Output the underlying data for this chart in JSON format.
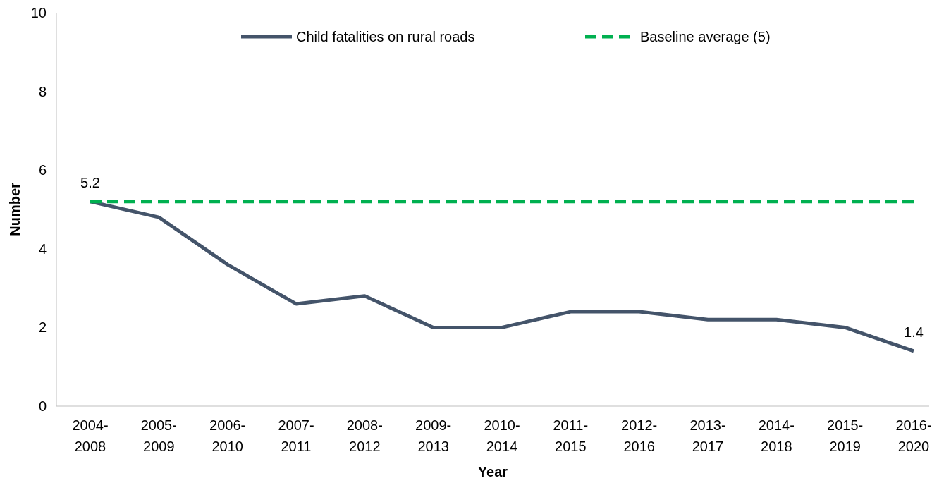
{
  "chart_data": {
    "type": "line",
    "xlabel": "Year",
    "ylabel": "Number",
    "categories": [
      "2004-2008",
      "2005-2009",
      "2006-2010",
      "2007-2011",
      "2008-2012",
      "2009-2013",
      "2010-2014",
      "2011-2015",
      "2012-2016",
      "2013-2017",
      "2014-2018",
      "2015-2019",
      "2016-2020"
    ],
    "series": [
      {
        "name": "Child fatalities on rural roads",
        "color": "#44546a",
        "line_style": "solid",
        "values": [
          5.2,
          4.8,
          3.6,
          2.6,
          2.8,
          2.0,
          2.0,
          2.4,
          2.4,
          2.2,
          2.2,
          2.0,
          1.4
        ],
        "value_labels": [
          "5.2",
          null,
          null,
          null,
          null,
          null,
          null,
          null,
          null,
          null,
          null,
          null,
          "1.4"
        ]
      },
      {
        "name": "Baseline average (5)",
        "color": "#00b050",
        "line_style": "dashed",
        "values": [
          5.2,
          5.2,
          5.2,
          5.2,
          5.2,
          5.2,
          5.2,
          5.2,
          5.2,
          5.2,
          5.2,
          5.2,
          5.2
        ]
      }
    ],
    "ylim": [
      0,
      10
    ],
    "yticks": [
      0,
      2,
      4,
      6,
      8,
      10
    ],
    "grid": false,
    "legend": "top",
    "marker": "none"
  }
}
